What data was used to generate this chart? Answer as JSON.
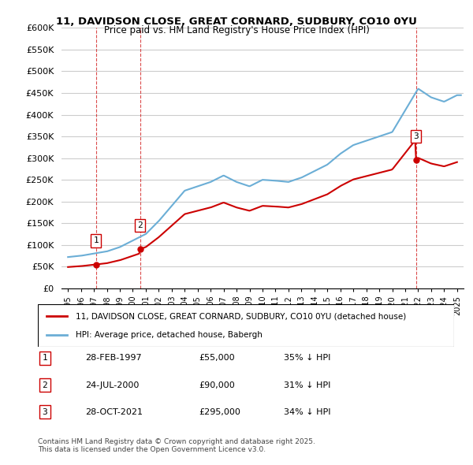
{
  "title_line1": "11, DAVIDSON CLOSE, GREAT CORNARD, SUDBURY, CO10 0YU",
  "title_line2": "Price paid vs. HM Land Registry's House Price Index (HPI)",
  "ylabel_ticks": [
    "£0",
    "£50K",
    "£100K",
    "£150K",
    "£200K",
    "£250K",
    "£300K",
    "£350K",
    "£400K",
    "£450K",
    "£500K",
    "£550K",
    "£600K"
  ],
  "ytick_values": [
    0,
    50000,
    100000,
    150000,
    200000,
    250000,
    300000,
    350000,
    400000,
    450000,
    500000,
    550000,
    600000
  ],
  "xlim_start": 1994.5,
  "xlim_end": 2025.5,
  "ylim_min": 0,
  "ylim_max": 600000,
  "hpi_color": "#6baed6",
  "price_color": "#cc0000",
  "sale_marker_color": "#cc0000",
  "vline_color": "#cc0000",
  "grid_color": "#cccccc",
  "background_color": "#ffffff",
  "sales": [
    {
      "date_year": 1997.16,
      "price": 55000,
      "label": "1"
    },
    {
      "date_year": 2000.56,
      "price": 90000,
      "label": "2"
    },
    {
      "date_year": 2021.83,
      "price": 295000,
      "label": "3"
    }
  ],
  "legend_entries": [
    "11, DAVIDSON CLOSE, GREAT CORNARD, SUDBURY, CO10 0YU (detached house)",
    "HPI: Average price, detached house, Babergh"
  ],
  "table_rows": [
    {
      "num": "1",
      "date": "28-FEB-1997",
      "price": "£55,000",
      "pct": "35% ↓ HPI"
    },
    {
      "num": "2",
      "date": "24-JUL-2000",
      "price": "£90,000",
      "pct": "31% ↓ HPI"
    },
    {
      "num": "3",
      "date": "28-OCT-2021",
      "price": "£295,000",
      "pct": "34% ↓ HPI"
    }
  ],
  "footer": "Contains HM Land Registry data © Crown copyright and database right 2025.\nThis data is licensed under the Open Government Licence v3.0."
}
